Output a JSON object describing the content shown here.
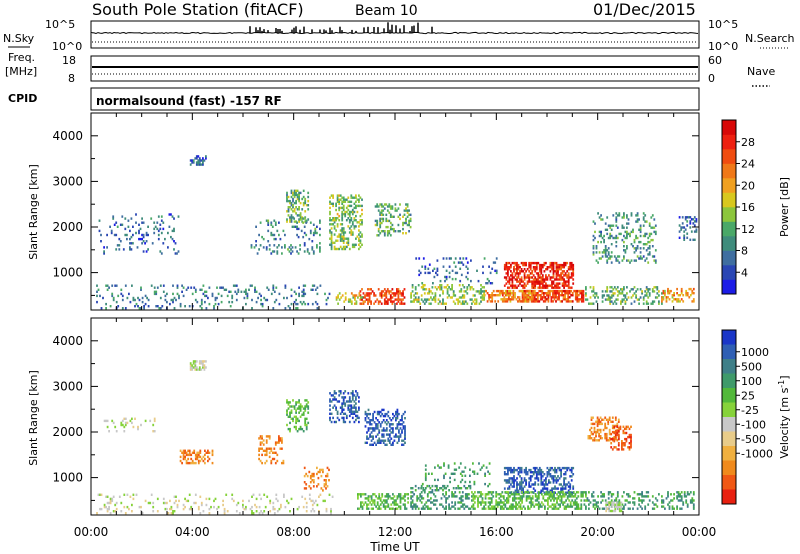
{
  "header": {
    "title": "South Pole Station (fitACF)",
    "beam": "Beam 10",
    "date": "01/Dec/2015"
  },
  "params": {
    "nsky_label": "N.Sky",
    "nsearch_label": "N.Search",
    "nsky_ticks": [
      "10^5",
      "10^0"
    ],
    "freq_label": "Freq.",
    "freq_unit": "[MHz]",
    "freq_ticks": [
      "18",
      "8"
    ],
    "nave_label": "Nave",
    "nave_ticks": [
      "60",
      "0"
    ],
    "cpid_label": "CPID",
    "cpid_text": "normalsound (fast) -157 RF"
  },
  "colors": {
    "power": [
      "#1c1ce6",
      "#2a46b4",
      "#3f6ea0",
      "#3f8c7c",
      "#4aa868",
      "#8cc63c",
      "#d8c81e",
      "#f0a020",
      "#f07818",
      "#f04c10",
      "#ee2010",
      "#d80808"
    ],
    "velocity": [
      "#1a36c8",
      "#2f5fb4",
      "#3f7f88",
      "#3f9a6a",
      "#52b83a",
      "#86d23a",
      "#c8c8c8",
      "#e8cc8a",
      "#f0b040",
      "#f08a1c",
      "#f05814",
      "#e82010"
    ]
  },
  "chart_data": [
    {
      "type": "heatmap",
      "quantity": "Power",
      "xlabel": "",
      "ylabel": "Slant Range [km]",
      "x_ticks": [
        "00:00",
        "04:00",
        "08:00",
        "12:00",
        "16:00",
        "20:00",
        "00:00"
      ],
      "x_range_hours": [
        0,
        24
      ],
      "ylim": [
        180,
        4500
      ],
      "y_ticks": [
        1000,
        2000,
        3000,
        4000
      ],
      "colorbar_label": "Power [dB]",
      "colorbar_range": [
        0,
        32
      ],
      "colorbar_ticks": [
        "28",
        "24",
        "20",
        "16",
        "12",
        "8",
        "4"
      ],
      "regions": [
        {
          "t0": 16.3,
          "t1": 19.0,
          "r0": 650,
          "r1": 1200,
          "v": 28,
          "d": 0.6
        },
        {
          "t0": 17.0,
          "t1": 19.4,
          "r0": 350,
          "r1": 600,
          "v": 26,
          "d": 0.7
        },
        {
          "t0": 15.5,
          "t1": 17.5,
          "r0": 350,
          "r1": 600,
          "v": 22,
          "d": 0.55
        },
        {
          "t0": 10.6,
          "t1": 12.4,
          "r0": 300,
          "r1": 620,
          "v": 26,
          "d": 0.5
        },
        {
          "t0": 9.6,
          "t1": 10.8,
          "r0": 300,
          "r1": 550,
          "v": 18,
          "d": 0.35
        },
        {
          "t0": 12.6,
          "t1": 15.5,
          "r0": 300,
          "r1": 750,
          "v": 14,
          "d": 0.35
        },
        {
          "t0": 19.5,
          "t1": 22.5,
          "r0": 300,
          "r1": 700,
          "v": 12,
          "d": 0.3
        },
        {
          "t0": 22.5,
          "t1": 23.8,
          "r0": 350,
          "r1": 650,
          "v": 20,
          "d": 0.4
        },
        {
          "t0": 0.2,
          "t1": 9.5,
          "r0": 200,
          "r1": 700,
          "v": 8,
          "d": 0.12
        },
        {
          "t0": 3.9,
          "t1": 4.5,
          "r0": 3350,
          "r1": 3550,
          "v": 6,
          "d": 0.6
        },
        {
          "t0": 7.7,
          "t1": 8.6,
          "r0": 2100,
          "r1": 2800,
          "v": 12,
          "d": 0.35
        },
        {
          "t0": 9.4,
          "t1": 10.7,
          "r0": 1500,
          "r1": 2700,
          "v": 14,
          "d": 0.35
        },
        {
          "t0": 11.2,
          "t1": 12.6,
          "r0": 1800,
          "r1": 2500,
          "v": 12,
          "d": 0.35
        },
        {
          "t0": 6.3,
          "t1": 9.0,
          "r0": 1400,
          "r1": 2200,
          "v": 9,
          "d": 0.15
        },
        {
          "t0": 0.3,
          "t1": 3.5,
          "r0": 1400,
          "r1": 2300,
          "v": 6,
          "d": 0.1
        },
        {
          "t0": 19.8,
          "t1": 22.3,
          "r0": 1200,
          "r1": 2300,
          "v": 10,
          "d": 0.22
        },
        {
          "t0": 23.2,
          "t1": 23.9,
          "r0": 1700,
          "r1": 2200,
          "v": 6,
          "d": 0.25
        },
        {
          "t0": 12.8,
          "t1": 16.0,
          "r0": 750,
          "r1": 1300,
          "v": 7,
          "d": 0.12
        }
      ]
    },
    {
      "type": "heatmap",
      "quantity": "Velocity",
      "xlabel": "Time UT",
      "ylabel": "Slant Range [km]",
      "x_ticks": [
        "00:00",
        "04:00",
        "08:00",
        "12:00",
        "16:00",
        "20:00",
        "00:00"
      ],
      "x_range_hours": [
        0,
        24
      ],
      "ylim": [
        180,
        4500
      ],
      "y_ticks": [
        1000,
        2000,
        3000,
        4000
      ],
      "colorbar_label": "Velocity [m s^-1]",
      "colorbar_ticks": [
        "1000",
        "500",
        "100",
        "25",
        "-25",
        "-100",
        "-500",
        "-1000"
      ],
      "regions": [
        {
          "t0": 16.3,
          "t1": 19.0,
          "r0": 650,
          "r1": 1200,
          "c": 1,
          "d": 0.5
        },
        {
          "t0": 15.0,
          "t1": 19.5,
          "r0": 300,
          "r1": 700,
          "c": 4,
          "d": 0.5
        },
        {
          "t0": 10.5,
          "t1": 12.5,
          "r0": 300,
          "r1": 650,
          "c": 4,
          "d": 0.45
        },
        {
          "t0": 12.6,
          "t1": 15.0,
          "r0": 300,
          "r1": 800,
          "c": 3,
          "d": 0.35
        },
        {
          "t0": 19.5,
          "t1": 23.8,
          "r0": 300,
          "r1": 700,
          "c": 3,
          "d": 0.3
        },
        {
          "t0": 20.3,
          "t1": 20.9,
          "r0": 250,
          "r1": 450,
          "c": 6,
          "d": 0.6
        },
        {
          "t0": 0.2,
          "t1": 9.5,
          "r0": 200,
          "r1": 650,
          "c": 6,
          "d": 0.12
        },
        {
          "t0": 3.9,
          "t1": 4.5,
          "r0": 3350,
          "r1": 3550,
          "c": 6,
          "d": 0.6
        },
        {
          "t0": 3.5,
          "t1": 4.8,
          "r0": 1300,
          "r1": 1600,
          "c": 9,
          "d": 0.5
        },
        {
          "t0": 7.7,
          "t1": 8.6,
          "r0": 2000,
          "r1": 2700,
          "c": 4,
          "d": 0.35
        },
        {
          "t0": 6.6,
          "t1": 7.6,
          "r0": 1300,
          "r1": 1900,
          "c": 9,
          "d": 0.3
        },
        {
          "t0": 9.4,
          "t1": 10.6,
          "r0": 2200,
          "r1": 2900,
          "c": 1,
          "d": 0.35
        },
        {
          "t0": 10.8,
          "t1": 12.4,
          "r0": 1700,
          "r1": 2500,
          "c": 1,
          "d": 0.4
        },
        {
          "t0": 8.4,
          "t1": 9.4,
          "r0": 700,
          "r1": 1200,
          "c": 9,
          "d": 0.25
        },
        {
          "t0": 19.6,
          "t1": 20.8,
          "r0": 1800,
          "r1": 2300,
          "c": 9,
          "d": 0.45
        },
        {
          "t0": 20.5,
          "t1": 21.3,
          "r0": 1600,
          "r1": 2100,
          "c": 10,
          "d": 0.35
        },
        {
          "t0": 0.5,
          "t1": 2.5,
          "r0": 2000,
          "r1": 2300,
          "c": 6,
          "d": 0.15
        },
        {
          "t0": 13.0,
          "t1": 15.8,
          "r0": 750,
          "r1": 1300,
          "c": 3,
          "d": 0.12
        }
      ]
    }
  ]
}
